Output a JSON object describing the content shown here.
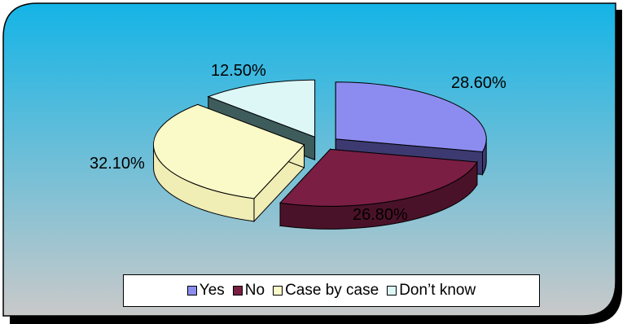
{
  "chart_data": {
    "type": "pie",
    "style": "3d-exploded",
    "slices": [
      {
        "label": "Yes",
        "value": 28.6,
        "value_label": "28.60%",
        "color": "#8C8CF0",
        "side_color": "#3C3A70"
      },
      {
        "label": "No",
        "value": 26.8,
        "value_label": "26.80%",
        "color": "#7A1E44",
        "side_color": "#4A1228"
      },
      {
        "label": "Case by case",
        "value": 32.1,
        "value_label": "32.10%",
        "color": "#FAFAC8",
        "side_color": "#F0EDB5"
      },
      {
        "label": "Don’t know",
        "value": 12.5,
        "value_label": "12.50%",
        "color": "#DDF7F7",
        "side_color": "#3E5C5C"
      }
    ],
    "legend_position": "bottom"
  },
  "colors": {
    "background_top": "#14B4E6",
    "background_bottom": "#C9C9C9",
    "shadow": "#000000"
  }
}
